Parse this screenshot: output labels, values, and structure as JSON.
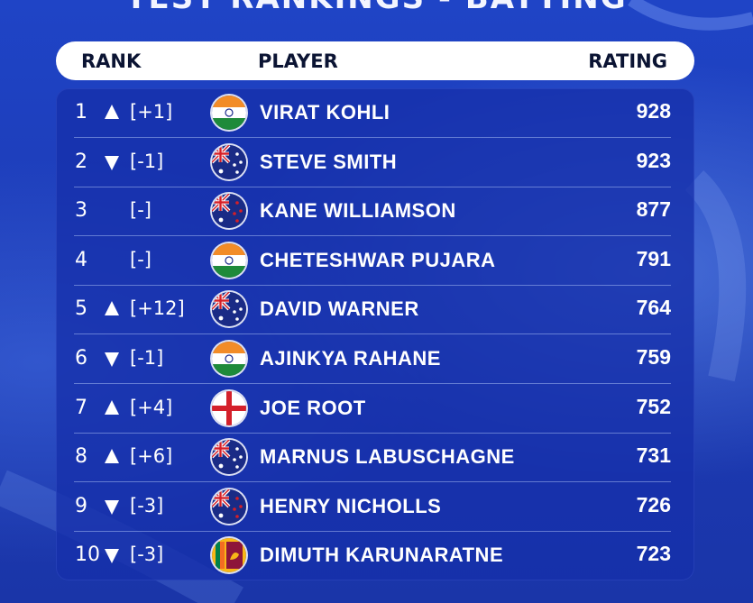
{
  "page": {
    "title": "TEST RANKINGS - BATTING"
  },
  "header": {
    "rank_label": "RANK",
    "player_label": "PLAYER",
    "rating_label": "RATING"
  },
  "rows": [
    {
      "rank": "1",
      "direction": "up",
      "change": "[+1]",
      "flag": "india-flag-icon",
      "player": "VIRAT KOHLI",
      "rating": "928"
    },
    {
      "rank": "2",
      "direction": "down",
      "change": "[-1]",
      "flag": "australia-flag-icon",
      "player": "STEVE SMITH",
      "rating": "923"
    },
    {
      "rank": "3",
      "direction": "none",
      "change": "[-]",
      "flag": "new-zealand-flag-icon",
      "player": "KANE WILLIAMSON",
      "rating": "877"
    },
    {
      "rank": "4",
      "direction": "none",
      "change": "[-]",
      "flag": "india-flag-icon",
      "player": "CHETESHWAR PUJARA",
      "rating": "791"
    },
    {
      "rank": "5",
      "direction": "up",
      "change": "[+12]",
      "flag": "australia-flag-icon",
      "player": "DAVID WARNER",
      "rating": "764"
    },
    {
      "rank": "6",
      "direction": "down",
      "change": "[-1]",
      "flag": "india-flag-icon",
      "player": "AJINKYA RAHANE",
      "rating": "759"
    },
    {
      "rank": "7",
      "direction": "up",
      "change": "[+4]",
      "flag": "england-flag-icon",
      "player": "JOE ROOT",
      "rating": "752"
    },
    {
      "rank": "8",
      "direction": "up",
      "change": "[+6]",
      "flag": "australia-flag-icon",
      "player": "MARNUS LABUSCHAGNE",
      "rating": "731"
    },
    {
      "rank": "9",
      "direction": "down",
      "change": "[-3]",
      "flag": "new-zealand-flag-icon",
      "player": "HENRY NICHOLLS",
      "rating": "726"
    },
    {
      "rank": "10",
      "direction": "down",
      "change": "[-3]",
      "flag": "sri-lanka-flag-icon",
      "player": "DIMUTH KARUNARATNE",
      "rating": "723"
    }
  ],
  "colors": {
    "background": "#1d3cb8",
    "header_bg": "#ffffff",
    "header_text": "#0b1433",
    "row_text": "#ffffff"
  }
}
